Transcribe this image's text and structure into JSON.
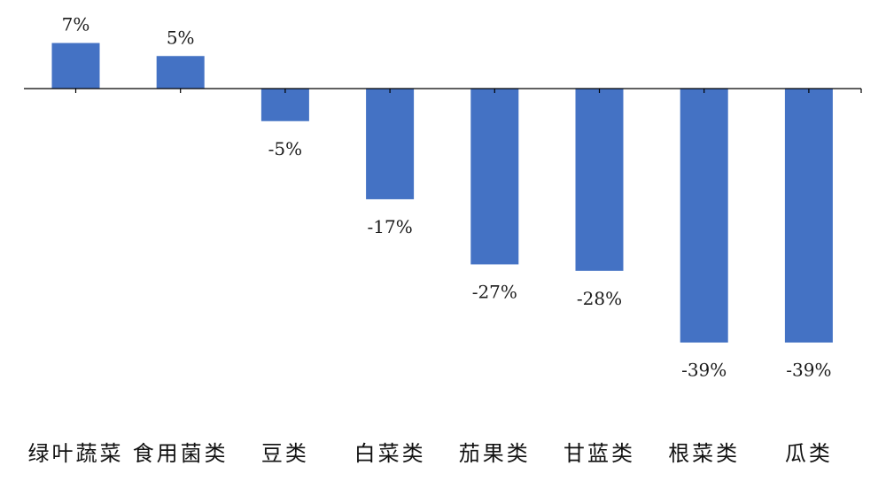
{
  "chart_data": {
    "type": "bar",
    "categories": [
      "绿叶蔬菜",
      "食用菌类",
      "豆类",
      "白菜类",
      "茄果类",
      "甘蓝类",
      "根菜类",
      "瓜类"
    ],
    "values": [
      7,
      5,
      -5,
      -17,
      -27,
      -28,
      -39,
      -39
    ],
    "data_labels": [
      "7%",
      "5%",
      "-5%",
      "-17%",
      "-27%",
      "-28%",
      "-39%",
      "-39%"
    ],
    "unit": "%",
    "title": "",
    "xlabel": "",
    "ylabel": "",
    "ylim": [
      -45,
      10
    ],
    "grid": false,
    "legend": "none",
    "bar_color": "#4472c4"
  }
}
